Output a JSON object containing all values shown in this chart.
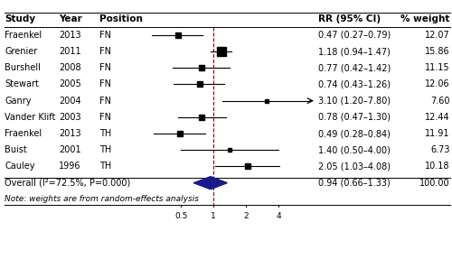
{
  "studies": [
    "Fraenkel",
    "Grenier",
    "Burshell",
    "Stewart",
    "Ganry",
    "Vander Klift",
    "Fraenkel",
    "Buist",
    "Cauley"
  ],
  "years": [
    "2013",
    "2011",
    "2008",
    "2005",
    "2004",
    "2003",
    "2013",
    "2001",
    "1996"
  ],
  "positions": [
    "FN",
    "FN",
    "FN",
    "FN",
    "FN",
    "FN",
    "TH",
    "TH",
    "TH"
  ],
  "rr": [
    0.47,
    1.18,
    0.77,
    0.74,
    3.1,
    0.78,
    0.49,
    1.4,
    2.05
  ],
  "ci_low": [
    0.27,
    0.94,
    0.42,
    0.43,
    1.2,
    0.47,
    0.28,
    0.5,
    1.03
  ],
  "ci_high": [
    0.79,
    1.47,
    1.42,
    1.26,
    7.8,
    1.3,
    0.84,
    4.0,
    4.08
  ],
  "weights": [
    12.07,
    15.86,
    11.15,
    12.06,
    7.6,
    12.44,
    11.91,
    6.73,
    10.18
  ],
  "rr_labels": [
    "0.47 (0.27–0.79)",
    "1.18 (0.94–1.47)",
    "0.77 (0.42–1.42)",
    "0.74 (0.43–1.26)",
    "3.10 (1.20–7.80)",
    "0.78 (0.47–1.30)",
    "0.49 (0.28–0.84)",
    "1.40 (0.50–4.00)",
    "2.05 (1.03–4.08)"
  ],
  "weight_labels": [
    "12.07",
    "15.86",
    "11.15",
    "12.06",
    "7.60",
    "12.44",
    "11.91",
    "6.73",
    "10.18"
  ],
  "overall_rr": 0.94,
  "overall_ci_low": 0.66,
  "overall_ci_high": 1.33,
  "overall_label": "0.94 (0.66–1.33)",
  "overall_weight": "100.00",
  "overall_text": "Overall (I²=72.5%, P=0.000)",
  "note_text": "Note: weights are from random-effects analysis",
  "header_study": "Study",
  "header_year": "Year",
  "header_position": "Position",
  "header_rr": "RR (95% CI)",
  "header_weight": "% weight",
  "xmin": 0.2,
  "xmax": 8.5,
  "xtick_vals": [
    0.5,
    1,
    2,
    4
  ],
  "xtick_labels": [
    "0.5",
    "1",
    "2",
    "4"
  ],
  "xline": 1.0,
  "bg_color": "#ffffff",
  "line_color": "#000000",
  "diamond_color": "#1a1a8c",
  "dashed_line_color": "#8B0000",
  "font_size": 7.0,
  "header_font_size": 7.5
}
